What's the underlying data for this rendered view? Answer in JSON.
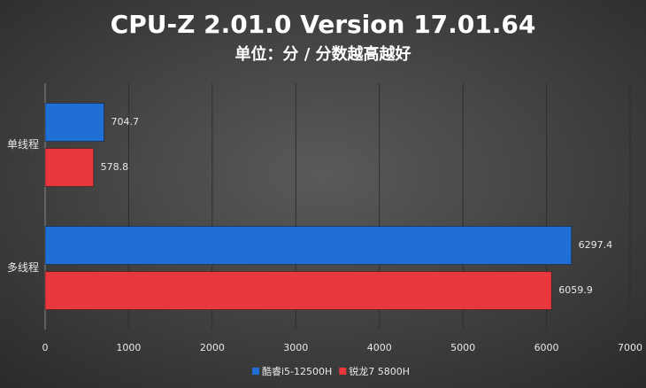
{
  "chart_data": {
    "type": "hbar",
    "title": "CPU-Z 2.01.0 Version 17.01.64",
    "subtitle": "单位：分 / 分数越高越好",
    "categories": [
      "单线程",
      "多线程"
    ],
    "series": [
      {
        "name": "酷睿i5-12500H",
        "color": "#1f6fd6",
        "values": [
          704.7,
          6297.4
        ]
      },
      {
        "name": "锐龙7 5800H",
        "color": "#e8383d",
        "values": [
          578.8,
          6059.9
        ]
      }
    ],
    "xlim": [
      0,
      7000
    ],
    "xticks": [
      0,
      1000,
      2000,
      3000,
      4000,
      5000,
      6000,
      7000
    ],
    "grid": true,
    "legend": "bottom"
  }
}
